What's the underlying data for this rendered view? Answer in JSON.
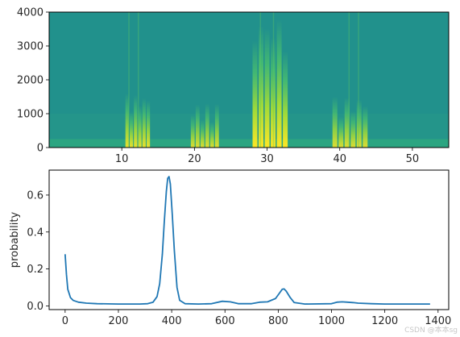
{
  "chart_data": [
    {
      "type": "heatmap",
      "title": "",
      "xlabel": "",
      "ylabel": "",
      "xlim": [
        0,
        55
      ],
      "ylim": [
        0,
        4000
      ],
      "xticks": [
        "10",
        "20",
        "30",
        "40",
        "50"
      ],
      "yticks": [
        "0",
        "1000",
        "2000",
        "3000",
        "4000"
      ],
      "colormap": "viridis",
      "base_color": "#21918c",
      "energy_bursts": [
        {
          "x_start": 10.5,
          "x_end": 14.0,
          "freq_max": 1600,
          "intensity": 0.9
        },
        {
          "x_start": 19.5,
          "x_end": 23.5,
          "freq_max": 1300,
          "intensity": 0.85
        },
        {
          "x_start": 28.0,
          "x_end": 33.0,
          "freq_max": 4000,
          "intensity": 1.0
        },
        {
          "x_start": 39.0,
          "x_end": 44.0,
          "freq_max": 1500,
          "intensity": 0.85
        }
      ]
    },
    {
      "type": "line",
      "title": "",
      "xlabel": "",
      "ylabel": "probability",
      "xlim": [
        -60,
        1440
      ],
      "ylim": [
        -0.02,
        0.735
      ],
      "xticks": [
        "0",
        "200",
        "400",
        "600",
        "800",
        "1000",
        "1200",
        "1400"
      ],
      "yticks": [
        "0.0",
        "0.2",
        "0.4",
        "0.6"
      ],
      "grid": false,
      "line_color": "#1f77b4",
      "x": [
        0,
        5,
        10,
        20,
        30,
        50,
        80,
        120,
        200,
        280,
        310,
        330,
        345,
        355,
        365,
        372,
        380,
        385,
        390,
        395,
        402,
        410,
        420,
        430,
        450,
        500,
        550,
        590,
        620,
        650,
        700,
        730,
        760,
        790,
        805,
        815,
        822,
        830,
        845,
        860,
        900,
        1000,
        1020,
        1040,
        1060,
        1080,
        1100,
        1150,
        1200,
        1300,
        1370
      ],
      "y": [
        0.28,
        0.17,
        0.09,
        0.045,
        0.03,
        0.02,
        0.015,
        0.012,
        0.01,
        0.01,
        0.012,
        0.02,
        0.05,
        0.12,
        0.28,
        0.45,
        0.62,
        0.69,
        0.7,
        0.66,
        0.5,
        0.3,
        0.1,
        0.03,
        0.012,
        0.01,
        0.012,
        0.025,
        0.022,
        0.012,
        0.012,
        0.02,
        0.022,
        0.04,
        0.07,
        0.09,
        0.092,
        0.08,
        0.045,
        0.018,
        0.01,
        0.012,
        0.02,
        0.022,
        0.02,
        0.018,
        0.015,
        0.012,
        0.01,
        0.01,
        0.01
      ]
    }
  ],
  "watermark": "CSDN @本本sg"
}
